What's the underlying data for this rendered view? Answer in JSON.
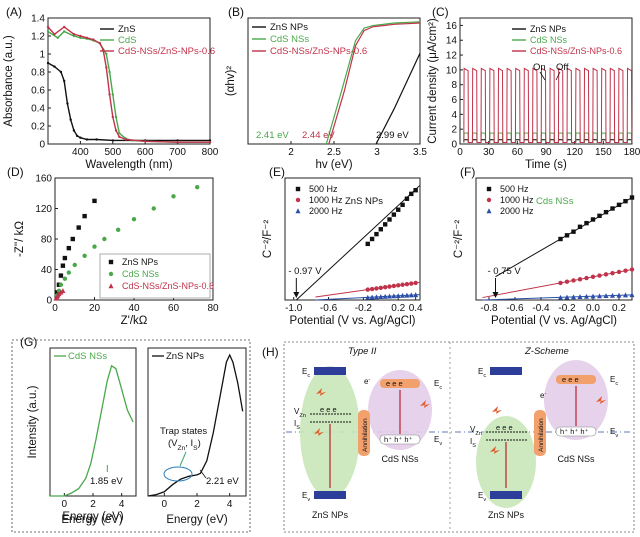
{
  "colors": {
    "zns": "#111111",
    "cds": "#4aa84a",
    "composite": "#c0334a",
    "hz2000": "#2b4fa8",
    "green_bubble": "#c9e7b9",
    "purple_bubble": "#e3cde8",
    "band_blue": "#2d3e9a",
    "band_orange": "#f2a06c",
    "electron_orange": "#f0a07a",
    "arrow_red": "#b8232a"
  },
  "chart_data": [
    {
      "id": "A",
      "type": "line",
      "panel_label": "(A)",
      "xlabel": "Wavelength (nm)",
      "ylabel": "Absorbance (a.u.)",
      "xlim": [
        300,
        800
      ],
      "ylim": [
        0,
        1.4
      ],
      "xticks": [
        400,
        500,
        600,
        700,
        800
      ],
      "yticks": [
        0.0,
        0.2,
        0.4,
        0.6,
        0.8,
        1.0,
        1.2,
        1.4
      ],
      "legend_position": "top-right",
      "series": [
        {
          "name": "ZnS",
          "color": "#111111",
          "x": [
            300,
            320,
            340,
            350,
            360,
            370,
            380,
            390,
            400,
            420,
            450,
            500,
            600,
            700,
            800
          ],
          "y": [
            0.9,
            0.86,
            0.8,
            0.7,
            0.45,
            0.27,
            0.15,
            0.09,
            0.07,
            0.05,
            0.05,
            0.04,
            0.04,
            0.04,
            0.04
          ]
        },
        {
          "name": "CdS",
          "color": "#4aa84a",
          "x": [
            300,
            330,
            350,
            380,
            400,
            420,
            440,
            460,
            480,
            490,
            500,
            510,
            520,
            540,
            560,
            600,
            700,
            800
          ],
          "y": [
            1.25,
            1.18,
            1.25,
            1.2,
            1.18,
            1.17,
            1.15,
            1.12,
            1.0,
            0.8,
            0.55,
            0.3,
            0.12,
            0.06,
            0.04,
            0.03,
            0.02,
            0.02
          ]
        },
        {
          "name": "CdS-NSs/ZnS-NPs-0.6",
          "color": "#c0334a",
          "x": [
            300,
            320,
            350,
            380,
            400,
            420,
            440,
            460,
            470,
            480,
            490,
            500,
            510,
            520,
            540,
            600,
            700,
            800
          ],
          "y": [
            1.3,
            1.22,
            1.3,
            1.22,
            1.2,
            1.18,
            1.16,
            1.12,
            1.05,
            0.85,
            0.55,
            0.3,
            0.15,
            0.08,
            0.05,
            0.03,
            0.02,
            0.02
          ]
        }
      ]
    },
    {
      "id": "B",
      "type": "line",
      "panel_label": "(B)",
      "xlabel": "hv (eV)",
      "ylabel": "(αhv)²",
      "xlim": [
        1.5,
        3.5
      ],
      "xticks": [
        2.0,
        2.5,
        3.0,
        3.5
      ],
      "legend_position": "top-left",
      "series": [
        {
          "name": "ZnS NPs",
          "color": "#111111",
          "x": [
            2.99,
            3.2,
            3.5
          ],
          "y": [
            0.0,
            0.28,
            0.72
          ]
        },
        {
          "name": "CdS NSs",
          "color": "#4aa84a",
          "x": [
            2.41,
            2.6,
            2.75,
            2.85,
            2.95,
            3.2,
            3.5
          ],
          "y": [
            0.0,
            0.45,
            0.82,
            0.92,
            0.94,
            0.96,
            0.97
          ]
        },
        {
          "name": "CdS-NSs/ZnS-NPs-0.6",
          "color": "#c0334a",
          "x": [
            2.44,
            2.62,
            2.75,
            2.85,
            2.95,
            3.2,
            3.5
          ],
          "y": [
            0.0,
            0.42,
            0.78,
            0.9,
            0.93,
            0.95,
            0.96
          ]
        }
      ],
      "annotations": [
        {
          "text": "2.41 eV",
          "color": "#4aa84a"
        },
        {
          "text": "2.44 eV",
          "color": "#c0334a"
        },
        {
          "text": "2.99 eV",
          "color": "#111111"
        }
      ]
    },
    {
      "id": "C",
      "type": "line",
      "panel_label": "(C)",
      "xlabel": "Time (s)",
      "ylabel": "Current density (μA/cm²)",
      "xlim": [
        0,
        180
      ],
      "ylim": [
        0,
        17
      ],
      "xticks": [
        0,
        30,
        60,
        90,
        120,
        150,
        180
      ],
      "yticks": [
        0,
        2,
        4,
        6,
        8,
        10,
        12,
        14,
        16
      ],
      "legend_position": "top-right",
      "series": [
        {
          "name": "ZnS NPs",
          "color": "#111111",
          "on_level": 0.6
        },
        {
          "name": "CdS NSs",
          "color": "#4aa84a",
          "on_level": 1.5
        },
        {
          "name": "CdS-NSs/ZnS-NPs-0.6",
          "color": "#c0334a",
          "on_level": 10.2
        }
      ],
      "cycle_s": 9,
      "annotations": [
        {
          "text": "On"
        },
        {
          "text": "Off"
        }
      ]
    },
    {
      "id": "D",
      "type": "scatter",
      "panel_label": "(D)",
      "xlabel": "Z'/kΩ",
      "ylabel": "-Z''/ kΩ",
      "xlim": [
        0,
        80
      ],
      "ylim": [
        0,
        160
      ],
      "xticks": [
        0,
        20,
        40,
        60,
        80
      ],
      "yticks": [
        0,
        40,
        80,
        120,
        160
      ],
      "legend_position": "bottom-right",
      "series": [
        {
          "name": "ZnS NPs",
          "color": "#111111",
          "marker": "square",
          "x": [
            1,
            2,
            3,
            4,
            5,
            7,
            9,
            12,
            15,
            20
          ],
          "y": [
            10,
            20,
            32,
            45,
            55,
            68,
            80,
            95,
            110,
            130
          ]
        },
        {
          "name": "CdS NSs",
          "color": "#4aa84a",
          "marker": "circle",
          "x": [
            1,
            2,
            3,
            5,
            7,
            10,
            15,
            20,
            25,
            32,
            40,
            50,
            60,
            72
          ],
          "y": [
            6,
            12,
            20,
            28,
            36,
            46,
            58,
            70,
            80,
            92,
            106,
            120,
            136,
            148
          ]
        },
        {
          "name": "CdS-NSs/ZnS-NPs-0.6",
          "color": "#c0334a",
          "marker": "triangle",
          "x": [
            0.5,
            1,
            1.5,
            2,
            3,
            4
          ],
          "y": [
            2,
            4,
            6,
            8,
            10,
            12
          ]
        }
      ]
    },
    {
      "id": "E",
      "type": "scatter",
      "panel_label": "(E)",
      "xlabel": "Potential (V vs. Ag/AgCl)",
      "ylabel": "C⁻²/F⁻²",
      "xlim": [
        -1.1,
        0.45
      ],
      "xticks": [
        -1.0,
        -0.6,
        -0.2,
        0.2,
        0.4
      ],
      "xticklabels": [
        "-1.0",
        "-0.6",
        "-0.2",
        "0.2",
        "0.4"
      ],
      "legend_position": "top-left",
      "series_title": "ZnS NPs",
      "annotations": [
        {
          "text": "- 0.97 V"
        }
      ],
      "series": [
        {
          "name": "500 Hz",
          "color": "#111111",
          "marker": "square",
          "x": [
            -0.15,
            -0.1,
            -0.05,
            0.0,
            0.05,
            0.1,
            0.15,
            0.2,
            0.25,
            0.3,
            0.35,
            0.4
          ],
          "y": [
            0.46,
            0.5,
            0.54,
            0.58,
            0.62,
            0.66,
            0.7,
            0.74,
            0.78,
            0.83,
            0.87,
            0.9
          ]
        },
        {
          "name": "1000 Hz",
          "color": "#c0334a",
          "marker": "circle",
          "x": [
            -0.15,
            -0.1,
            -0.05,
            0.0,
            0.05,
            0.1,
            0.15,
            0.2,
            0.25,
            0.3,
            0.35,
            0.4
          ],
          "y": [
            0.085,
            0.09,
            0.095,
            0.1,
            0.105,
            0.11,
            0.115,
            0.12,
            0.125,
            0.13,
            0.135,
            0.14
          ]
        },
        {
          "name": "2000 Hz",
          "color": "#2b4fa8",
          "marker": "triangle",
          "x": [
            -0.15,
            -0.1,
            -0.05,
            0.0,
            0.05,
            0.1,
            0.15,
            0.2,
            0.25,
            0.3,
            0.35,
            0.4
          ],
          "y": [
            0.02,
            0.022,
            0.024,
            0.026,
            0.028,
            0.03,
            0.032,
            0.034,
            0.036,
            0.038,
            0.04,
            0.042
          ]
        }
      ]
    },
    {
      "id": "F",
      "type": "scatter",
      "panel_label": "(F)",
      "xlabel": "Potential (V vs. Ag/AgCl)",
      "ylabel": "C⁻²/F⁻²",
      "xlim": [
        -0.9,
        0.3
      ],
      "xticks": [
        -0.8,
        -0.6,
        -0.4,
        -0.2,
        0.0,
        0.2
      ],
      "xticklabels": [
        "-0.8",
        "-0.6",
        "-0.4",
        "-0.2",
        "0.0",
        "0.2"
      ],
      "legend_position": "top-left",
      "series_title": "Cds NSs",
      "annotations": [
        {
          "text": "- 0.75 V"
        }
      ],
      "series": [
        {
          "name": "500 Hz",
          "color": "#111111",
          "marker": "square",
          "x": [
            -0.25,
            -0.2,
            -0.15,
            -0.1,
            -0.05,
            0.0,
            0.05,
            0.1,
            0.15,
            0.2,
            0.25,
            0.3
          ],
          "y": [
            0.5,
            0.53,
            0.56,
            0.6,
            0.63,
            0.66,
            0.69,
            0.72,
            0.75,
            0.78,
            0.81,
            0.84
          ]
        },
        {
          "name": "1000 Hz",
          "color": "#c0334a",
          "marker": "circle",
          "x": [
            -0.25,
            -0.2,
            -0.15,
            -0.1,
            -0.05,
            0.0,
            0.05,
            0.1,
            0.15,
            0.2,
            0.25,
            0.3
          ],
          "y": [
            0.14,
            0.15,
            0.16,
            0.17,
            0.18,
            0.19,
            0.2,
            0.21,
            0.22,
            0.23,
            0.24,
            0.25
          ]
        },
        {
          "name": "2000 Hz",
          "color": "#2b4fa8",
          "marker": "triangle",
          "x": [
            -0.25,
            -0.2,
            -0.15,
            -0.1,
            -0.05,
            0.0,
            0.05,
            0.1,
            0.15,
            0.2,
            0.25,
            0.3
          ],
          "y": [
            0.02,
            0.022,
            0.024,
            0.026,
            0.028,
            0.03,
            0.032,
            0.034,
            0.036,
            0.038,
            0.04,
            0.042
          ]
        }
      ]
    },
    {
      "id": "G1",
      "type": "line",
      "panel_label": "(G)",
      "xlabel": "Energy (eV)",
      "ylabel": "Intensity (a.u.)",
      "xlim": [
        -1,
        5
      ],
      "xticks": [
        0,
        2,
        4
      ],
      "legend_position": "top-left",
      "series": [
        {
          "name": "CdS NSs",
          "color": "#4aa84a",
          "x": [
            -1,
            0,
            0.5,
            1.0,
            1.5,
            1.85,
            2.2,
            2.6,
            3.0,
            3.3,
            3.6,
            4.0,
            4.4,
            4.8
          ],
          "y": [
            0.0,
            0.0,
            0.02,
            0.05,
            0.12,
            0.22,
            0.38,
            0.58,
            0.78,
            0.88,
            0.86,
            0.72,
            0.58,
            0.5
          ]
        }
      ],
      "annotations": [
        {
          "text": "1.85 eV"
        }
      ]
    },
    {
      "id": "G2",
      "type": "line",
      "xlabel": "",
      "ylabel": "",
      "xlim": [
        -1,
        5
      ],
      "xticks": [
        0,
        2,
        4
      ],
      "legend_position": "top-left",
      "series": [
        {
          "name": "ZnS NPs",
          "color": "#111111",
          "x": [
            -1,
            -0.5,
            0,
            0.5,
            1.0,
            1.5,
            2.0,
            2.21,
            2.6,
            3.0,
            3.4,
            3.8,
            4.0,
            4.2,
            4.5,
            4.8
          ],
          "y": [
            0.0,
            0.01,
            0.03,
            0.08,
            0.12,
            0.14,
            0.15,
            0.16,
            0.25,
            0.45,
            0.7,
            0.95,
            1.0,
            0.95,
            0.8,
            0.6
          ]
        }
      ],
      "annotations": [
        {
          "text": "Trap states"
        },
        {
          "text": "(V",
          "sub": "Zn",
          "mid": ", I",
          "sub2": "S",
          "end": ")"
        },
        {
          "text": "2.21 eV"
        }
      ]
    }
  ],
  "panel_H": {
    "panel_label": "(H)",
    "left_title": "Type II",
    "right_title": "Z-Scheme",
    "labels": {
      "ec": "E",
      "ec_sub": "c",
      "ev": "E",
      "ev_sub": "v",
      "vzn": "V",
      "vzn_sub": "Zn",
      "is": "I",
      "is_sub": "S",
      "electron": "e",
      "electron_sup": "-",
      "holes": "h⁺ h⁺ h⁺",
      "electrons": "e e e",
      "annihilation": "Annihilation",
      "zns_caption": "ZnS NPs",
      "cds_caption": "CdS NSs"
    }
  }
}
